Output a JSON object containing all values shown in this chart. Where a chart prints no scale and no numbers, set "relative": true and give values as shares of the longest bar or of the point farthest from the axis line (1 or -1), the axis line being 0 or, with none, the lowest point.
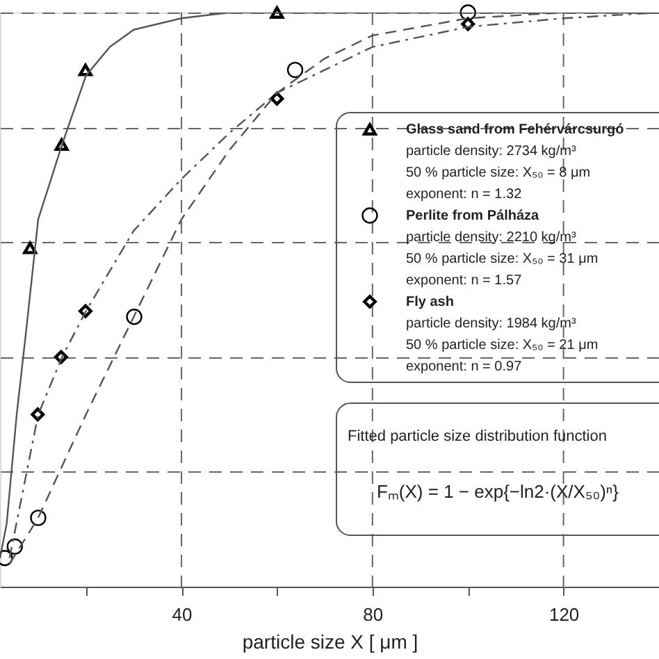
{
  "chart_data": {
    "type": "scatter",
    "xlabel": "particle size X [ μm ]",
    "relative": true,
    "xlim": [
      2,
      140
    ],
    "xticks": [
      {
        "value": 20,
        "label": null
      },
      40,
      {
        "value": 60,
        "label": null
      },
      80,
      {
        "value": 100,
        "label": null
      },
      120,
      {
        "value": 140,
        "label": null
      }
    ],
    "grid": true,
    "legend": "right",
    "series": [
      {
        "name": "Glass sand from Fehérvárcsurgó",
        "type": "scatter",
        "marker": "triangle",
        "color": "#000000",
        "x": [
          8.3,
          14.9,
          19.9,
          60
        ],
        "values": [
          0.59,
          0.77,
          0.9,
          1.0
        ]
      },
      {
        "name": "Perlite from Pálháza",
        "type": "scatter",
        "marker": "circle",
        "color": "#000000",
        "x": [
          3,
          5.1,
          10,
          30.1,
          63.8,
          100
        ],
        "values": [
          0.05,
          0.07,
          0.12,
          0.47,
          0.9,
          1.0
        ]
      },
      {
        "name": "Fly ash",
        "type": "scatter",
        "marker": "diamond",
        "color": "#000000",
        "x": [
          9.9,
          14.8,
          19.9,
          60,
          100
        ],
        "values": [
          0.3,
          0.4,
          0.48,
          0.85,
          0.98
        ]
      },
      {
        "type": "line",
        "line_style": "solid",
        "color": "#555555",
        "x": [
          2,
          3.4,
          5.5,
          7.4,
          10,
          15,
          20,
          25,
          30,
          40,
          50,
          60,
          140
        ],
        "values": [
          0.05,
          0.11,
          0.3,
          0.44,
          0.64,
          0.77,
          0.89,
          0.94,
          0.97,
          0.99,
          1.0,
          1.0,
          1.0
        ]
      },
      {
        "type": "line",
        "line_style": "dashed",
        "color": "#555555",
        "x": [
          4,
          10,
          20,
          30,
          40,
          50,
          60,
          70,
          80,
          100,
          120,
          140
        ],
        "values": [
          0.04,
          0.12,
          0.3,
          0.47,
          0.64,
          0.76,
          0.86,
          0.92,
          0.96,
          0.99,
          1.0,
          1.0
        ]
      },
      {
        "type": "line",
        "line_style": "dashdot",
        "color": "#555555",
        "x": [
          4,
          10,
          15,
          20,
          30,
          40,
          50,
          60,
          80,
          100,
          120,
          140
        ],
        "values": [
          0.05,
          0.3,
          0.4,
          0.48,
          0.62,
          0.71,
          0.79,
          0.86,
          0.94,
          0.975,
          0.99,
          1.0
        ]
      }
    ],
    "annotations": [
      "particle density: 2734 kg/m³",
      "50 % particle size: X₅₀ = 8 μm",
      "exponent: n = 1.32",
      "particle density: 2210 kg/m³",
      "50 % particle size: X₅₀ = 31 μm",
      "exponent: n = 1.57",
      "particle density: 1984 kg/m³",
      "50 % particle size: X₅₀ = 21 μm",
      "exponent: n = 0.97",
      "Fitted particle size distribution function",
      "Fₘ(X) = 1 − exp{−ln2·(X/X₅₀)ⁿ}"
    ]
  }
}
